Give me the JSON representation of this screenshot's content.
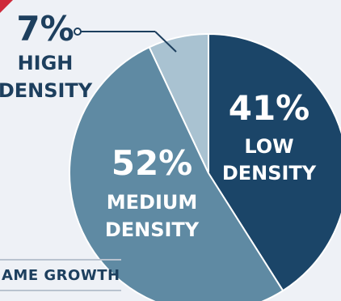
{
  "chart_data": {
    "type": "pie",
    "slices": [
      {
        "pct_text": "41%",
        "label_line1": "LOW",
        "label_line2": "DENSITY",
        "value": 41,
        "color": "#1b4568",
        "text_color": "#ffffff"
      },
      {
        "pct_text": "52%",
        "label_line1": "MEDIUM",
        "label_line2": "DENSITY",
        "value": 52,
        "color": "#5f8aa3",
        "text_color": "#ffffff"
      },
      {
        "pct_text": "7%",
        "label_line1": "HIGH",
        "label_line2": "DENSITY",
        "value": 7,
        "color": "#a9c2d1",
        "text_color": "#1d3f5e"
      }
    ]
  },
  "footer_label": "AME GROWTH",
  "colors": {
    "background": "#eef1f6",
    "accent_red": "#cf2a3b",
    "dark_navy": "#1d3f5e",
    "leader": "#1d3f5e"
  }
}
